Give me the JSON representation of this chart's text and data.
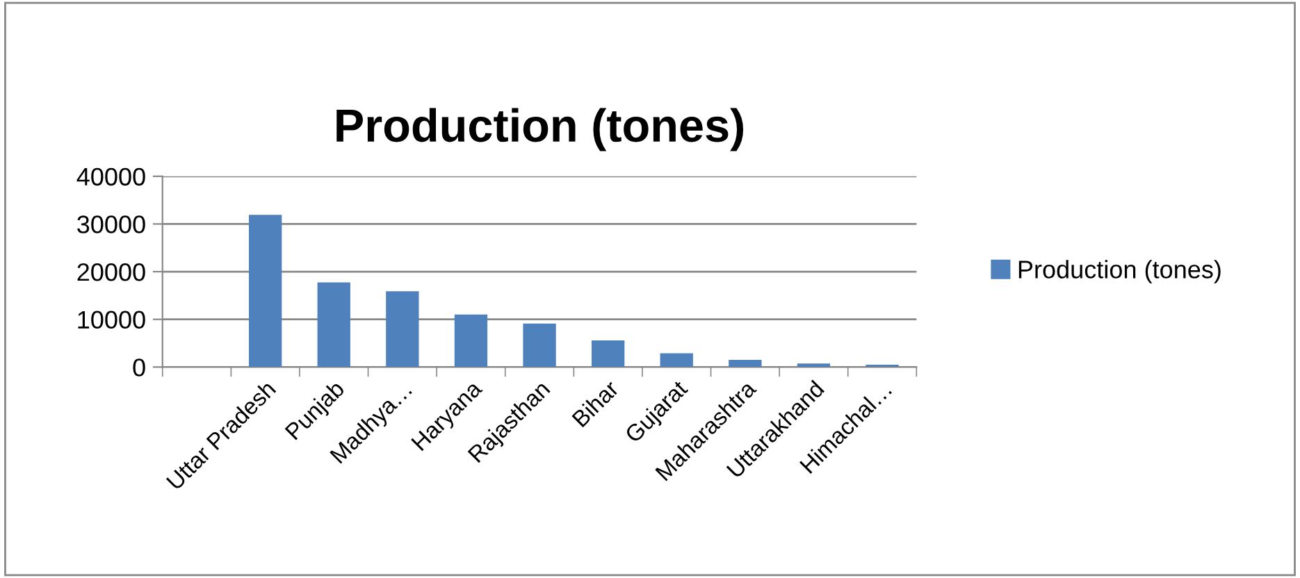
{
  "chart_data": {
    "type": "bar",
    "title": "Production (tones)",
    "categories": [
      null,
      "Uttar Pradesh",
      "Punjab",
      "Madhya…",
      "Haryana",
      "Rajasthan",
      "Bihar",
      "Gujarat",
      "Maharashtra",
      "Uttarakhand",
      "Himachal…"
    ],
    "series": [
      {
        "name": "Production (tones)",
        "color": "#4f81bd",
        "values": [
          null,
          31900,
          17750,
          15900,
          11000,
          9100,
          5600,
          2900,
          1500,
          750,
          500
        ]
      }
    ],
    "ylim": [
      0,
      40000
    ],
    "yticks": [
      0,
      10000,
      20000,
      30000,
      40000
    ],
    "grid": "y",
    "legend": "right"
  }
}
